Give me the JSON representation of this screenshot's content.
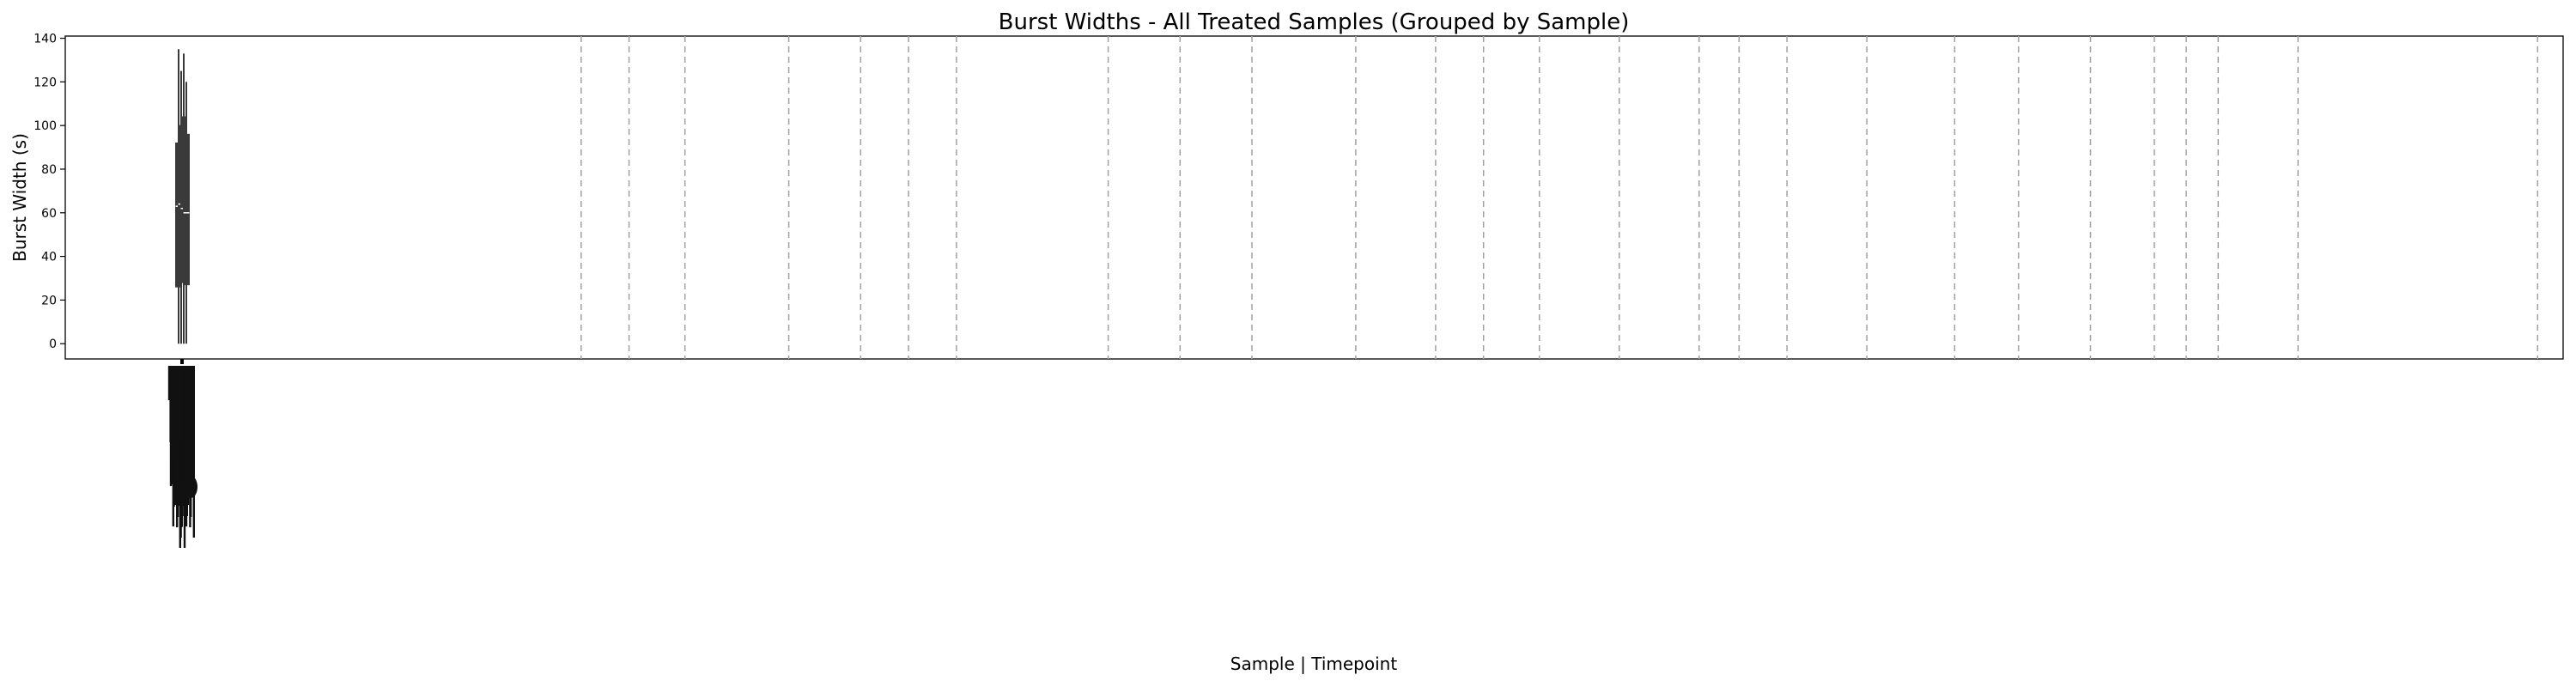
{
  "chart_data": {
    "type": "box",
    "title": "Burst Widths - All Treated Samples (Grouped by Sample)",
    "xlabel": "Sample | Timepoint",
    "ylabel": "Burst Width (s)",
    "ylim": [
      -7,
      141
    ],
    "yticks": [
      0,
      20,
      40,
      60,
      80,
      100,
      120,
      140
    ],
    "grid": false,
    "box_color": "#3a3a3a",
    "median_color": "#ffffff",
    "separator_color": "#a0a0a0",
    "boxes": [
      {
        "q1": 26,
        "median": 63,
        "q3": 92,
        "whisker_low": 0,
        "whisker_high": 135
      },
      {
        "q1": 28,
        "median": 64,
        "q3": 100,
        "whisker_low": 0,
        "whisker_high": 125
      },
      {
        "q1": 30,
        "median": 62,
        "q3": 104,
        "whisker_low": 0,
        "whisker_high": 133
      },
      {
        "q1": 27,
        "median": 60,
        "q3": 96,
        "whisker_low": 0,
        "whisker_high": 120
      }
    ],
    "category_count": 80,
    "separator_categories": [
      51,
      57,
      64,
      77,
      86,
      92,
      98,
      117,
      126,
      135,
      148,
      158,
      164,
      171,
      181,
      191,
      196,
      202,
      212,
      223,
      231,
      240,
      248,
      252,
      256,
      266,
      296,
      304,
      314
    ]
  }
}
